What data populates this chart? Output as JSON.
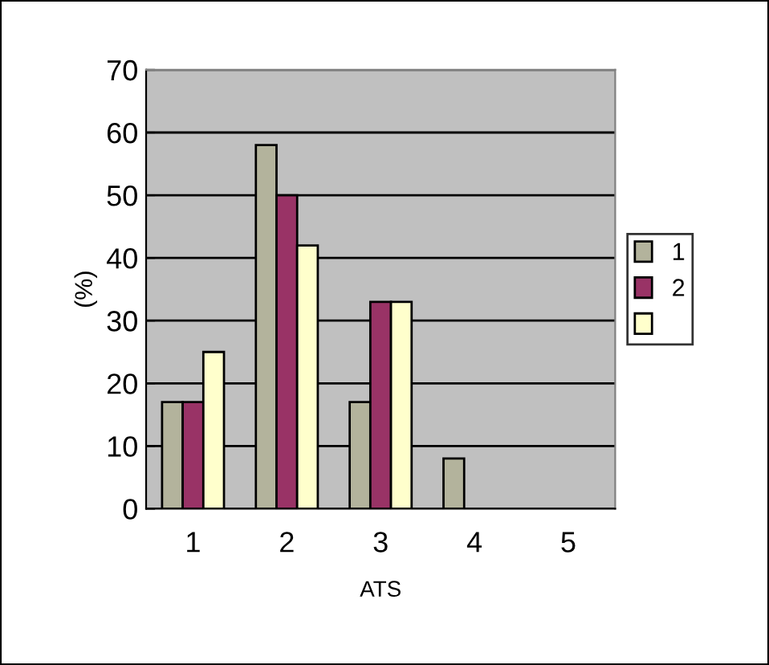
{
  "chart_data": {
    "type": "bar",
    "categories": [
      "1",
      "2",
      "3",
      "4",
      "5"
    ],
    "xlabel": "ATS",
    "ylabel": "(%)",
    "series": [
      {
        "name": "1",
        "color": "#b3b39c",
        "values": [
          17,
          58,
          17,
          8,
          0
        ]
      },
      {
        "name": "2",
        "color": "#993366",
        "values": [
          17,
          50,
          33,
          0,
          0
        ]
      },
      {
        "color": "#ffffcc",
        "values": [
          25,
          42,
          33,
          0,
          0
        ]
      }
    ],
    "ylim": [
      0,
      70
    ],
    "yticks": [
      0,
      10,
      20,
      30,
      40,
      50,
      60,
      70
    ],
    "grid": "y",
    "legend": "right"
  }
}
